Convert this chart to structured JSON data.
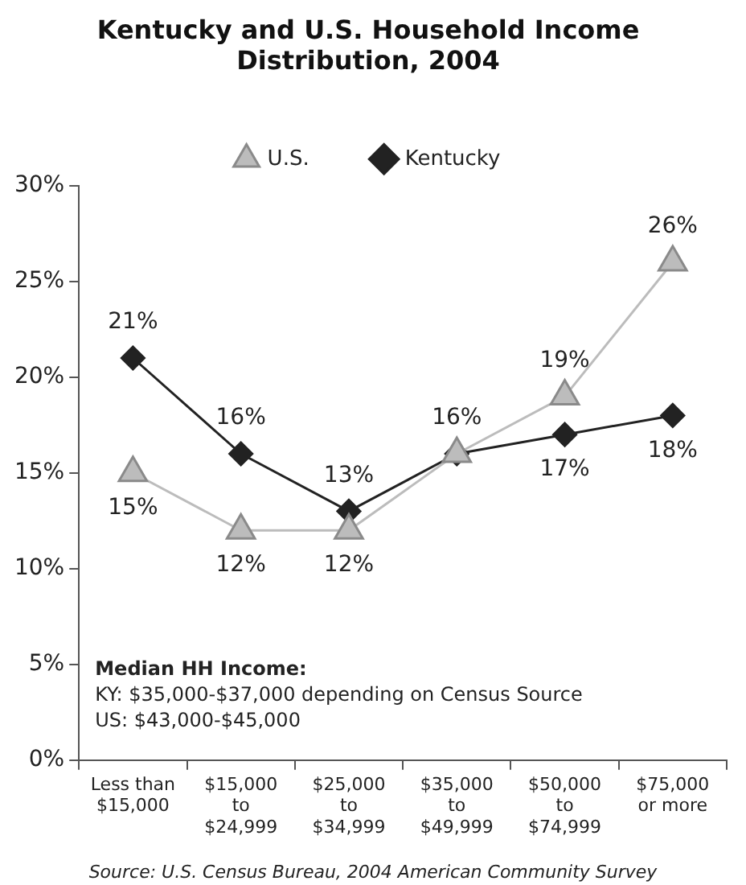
{
  "chart_data": {
    "type": "line",
    "title": "Kentucky and U.S. Household Income\nDistribution, 2004",
    "categories": [
      "Less than\n$15,000",
      "$15,000\nto\n$24,999",
      "$25,000\nto\n$34,999",
      "$35,000\nto\n$49,999",
      "$50,000\nto\n$74,999",
      "$75,000\nor more"
    ],
    "series": [
      {
        "name": "Kentucky",
        "color": "#222222",
        "marker": "diamond",
        "values": [
          21,
          16,
          13,
          16,
          17,
          18
        ],
        "value_labels": [
          "21%",
          "16%",
          "13%",
          "16%",
          "17%",
          "18%"
        ]
      },
      {
        "name": "U.S.",
        "color": "#bcbcbc",
        "marker": "triangle",
        "values": [
          15,
          12,
          12,
          16,
          19,
          26
        ],
        "value_labels": [
          "15%",
          "12%",
          "12%",
          null,
          "19%",
          "26%"
        ]
      }
    ],
    "ylim": [
      0,
      30
    ],
    "yticks": [
      {
        "value": 0,
        "label": "0%"
      },
      {
        "value": 5,
        "label": "5%"
      },
      {
        "value": 10,
        "label": "10%"
      },
      {
        "value": 15,
        "label": "15%"
      },
      {
        "value": 20,
        "label": "20%"
      },
      {
        "value": 25,
        "label": "25%"
      },
      {
        "value": 30,
        "label": "30%"
      }
    ],
    "grid": false,
    "legend": "top",
    "annotations": [
      "Median HH Income:",
      "KY: $35,000-$37,000 depending on Census Source",
      "US: $43,000-$45,000",
      "Source: U.S. Census Bureau, 2004 American Community Survey"
    ]
  }
}
